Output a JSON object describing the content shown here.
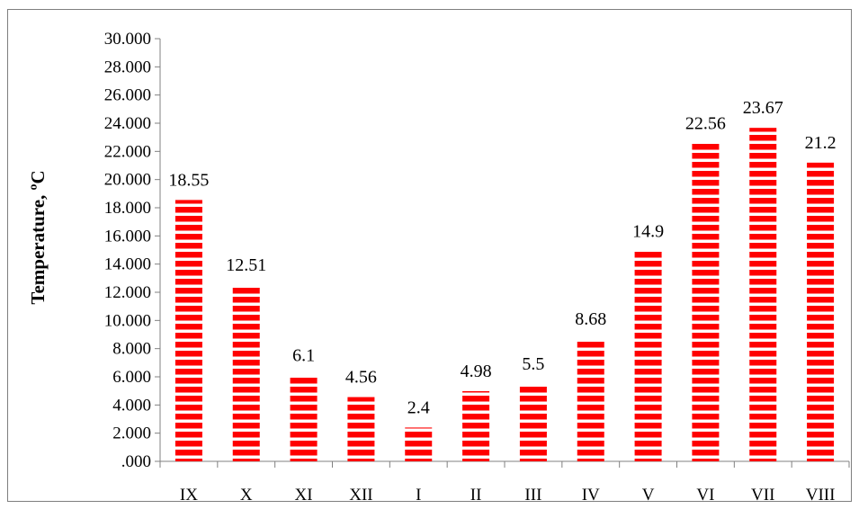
{
  "chart_data": {
    "type": "bar",
    "title": "",
    "xlabel": "",
    "ylabel": "Temperature, ºC",
    "categories": [
      "IX",
      "X",
      "XI",
      "XII",
      "I",
      "II",
      "III",
      "IV",
      "V",
      "VI",
      "VII",
      "VIII"
    ],
    "values": [
      18.55,
      12.51,
      6.1,
      4.56,
      2.4,
      4.98,
      5.5,
      8.68,
      14.9,
      22.56,
      23.67,
      21.2
    ],
    "data_labels": [
      "18.55",
      "12.51",
      "6.1",
      "4.56",
      "2.4",
      "4.98",
      "5.5",
      "8.68",
      "14.9",
      "22.56",
      "23.67",
      "21.2"
    ],
    "ylim": [
      0,
      30
    ],
    "y_ticks": [
      0,
      2,
      4,
      6,
      8,
      10,
      12,
      14,
      16,
      18,
      20,
      22,
      24,
      26,
      28,
      30
    ],
    "y_tick_labels": [
      ".000",
      "2.000",
      "4.000",
      "6.000",
      "8.000",
      "10.000",
      "12.000",
      "14.000",
      "16.000",
      "18.000",
      "20.000",
      "22.000",
      "24.000",
      "26.000",
      "28.000",
      "30.000"
    ],
    "bar_color": "#ff0000",
    "bar_pattern": "horizontal-stripes",
    "grid": false,
    "legend": "none"
  }
}
